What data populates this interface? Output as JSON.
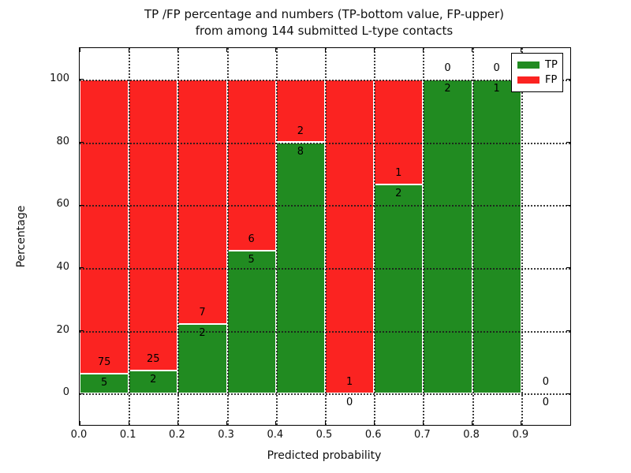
{
  "chart_data": {
    "type": "bar",
    "stacked": true,
    "title_line1": "TP /FP percentage and numbers (TP-bottom value, FP-upper)",
    "title_line2": "from among 144 submitted L-type contacts",
    "xlabel": "Predicted probability",
    "ylabel": "Percentage",
    "total_contacts": 144,
    "xlim": [
      0.0,
      1.0
    ],
    "ylim": [
      -10,
      110
    ],
    "grid": "dotted-black-over-bars",
    "bin_width": 0.1,
    "xticks": [
      {
        "value": 0.0,
        "label": "0.0"
      },
      {
        "value": 0.1,
        "label": "0.1"
      },
      {
        "value": 0.2,
        "label": "0.2"
      },
      {
        "value": 0.3,
        "label": "0.3"
      },
      {
        "value": 0.4,
        "label": "0.4"
      },
      {
        "value": 0.5,
        "label": "0.5"
      },
      {
        "value": 0.6,
        "label": "0.6"
      },
      {
        "value": 0.7,
        "label": "0.7"
      },
      {
        "value": 0.8,
        "label": "0.8"
      },
      {
        "value": 0.9,
        "label": "0.9"
      }
    ],
    "yticks": [
      {
        "value": 0,
        "label": "0"
      },
      {
        "value": 20,
        "label": "20"
      },
      {
        "value": 40,
        "label": "40"
      },
      {
        "value": 60,
        "label": "60"
      },
      {
        "value": 80,
        "label": "80"
      },
      {
        "value": 100,
        "label": "100"
      }
    ],
    "bins": [
      {
        "x0": 0.0,
        "x1": 0.1,
        "tp": 5,
        "fp": 75,
        "tp_pct": 6.25
      },
      {
        "x0": 0.1,
        "x1": 0.2,
        "tp": 2,
        "fp": 25,
        "tp_pct": 7.41
      },
      {
        "x0": 0.2,
        "x1": 0.3,
        "tp": 2,
        "fp": 7,
        "tp_pct": 22.22
      },
      {
        "x0": 0.3,
        "x1": 0.4,
        "tp": 5,
        "fp": 6,
        "tp_pct": 45.45
      },
      {
        "x0": 0.4,
        "x1": 0.5,
        "tp": 8,
        "fp": 2,
        "tp_pct": 80.0
      },
      {
        "x0": 0.5,
        "x1": 0.6,
        "tp": 0,
        "fp": 1,
        "tp_pct": 0.0
      },
      {
        "x0": 0.6,
        "x1": 0.7,
        "tp": 2,
        "fp": 1,
        "tp_pct": 66.67
      },
      {
        "x0": 0.7,
        "x1": 0.8,
        "tp": 2,
        "fp": 0,
        "tp_pct": 100.0
      },
      {
        "x0": 0.8,
        "x1": 0.9,
        "tp": 1,
        "fp": 0,
        "tp_pct": 100.0
      },
      {
        "x0": 0.9,
        "x1": 1.0,
        "tp": 0,
        "fp": 0,
        "tp_pct": null
      }
    ],
    "series": [
      {
        "name": "TP",
        "color": "#218b21"
      },
      {
        "name": "FP",
        "color": "#fb2321"
      }
    ],
    "legend": {
      "position": "upper-right",
      "entries": [
        {
          "label": "TP",
          "color": "#218b21"
        },
        {
          "label": "FP",
          "color": "#fb2321"
        }
      ]
    }
  }
}
